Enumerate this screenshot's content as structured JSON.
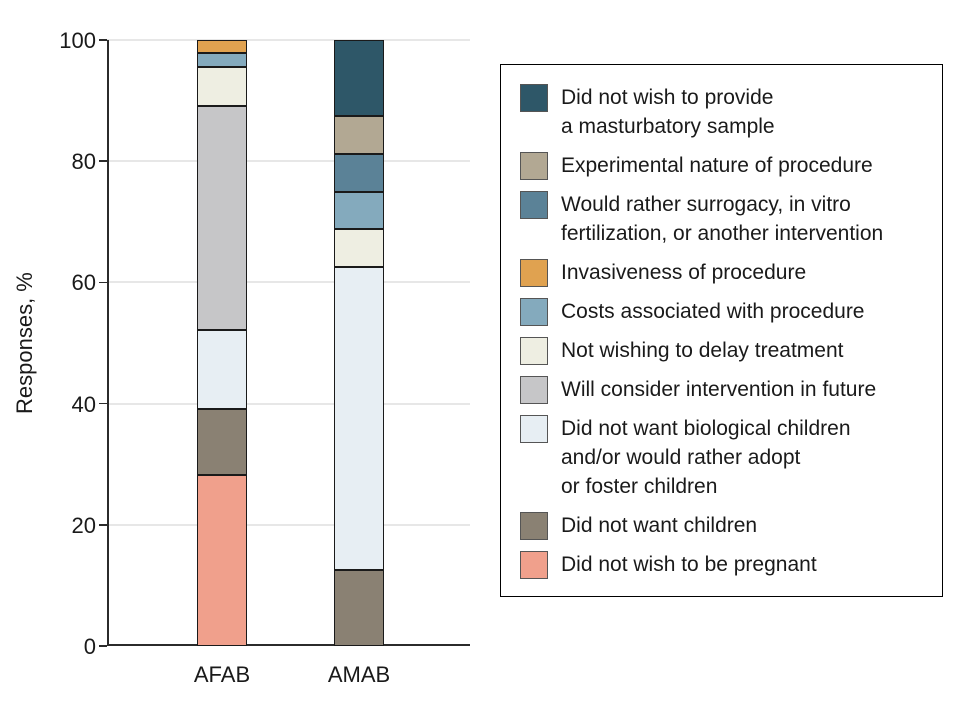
{
  "colors": {
    "background": "#ffffff",
    "axis": "#2b2b2b",
    "gridline": "#e7e7e7",
    "segment_border": "#1a1a1a",
    "text": "#1a1a1a",
    "legend_border": "#000000"
  },
  "chart_data": {
    "type": "bar",
    "stacked": true,
    "title": "",
    "xlabel": "",
    "ylabel": "Responses, %",
    "categories": [
      "AFAB",
      "AMAB"
    ],
    "ylim": [
      0,
      100
    ],
    "yticks": [
      0,
      20,
      40,
      60,
      80,
      100
    ],
    "grid": "horizontal",
    "legend_position": "right",
    "series": [
      {
        "name": "Did not wish to be pregnant",
        "color": "#f0a08c",
        "values": [
          28.3,
          0
        ]
      },
      {
        "name": "Did not want children",
        "color": "#8a8173",
        "values": [
          10.9,
          12.5
        ]
      },
      {
        "name": "Did not want biological children and/or would rather adopt or foster children",
        "color": "#e7eef3",
        "values": [
          13.0,
          50
        ]
      },
      {
        "name": "Will consider intervention in future",
        "color": "#c6c6c8",
        "values": [
          37.0,
          0
        ]
      },
      {
        "name": "Not wishing to delay treatment",
        "color": "#eeeee2",
        "values": [
          6.5,
          6.25
        ]
      },
      {
        "name": "Costs associated with procedure",
        "color": "#84aabd",
        "values": [
          2.2,
          6.25
        ]
      },
      {
        "name": "Invasiveness of procedure",
        "color": "#e0a250",
        "values": [
          2.2,
          0
        ]
      },
      {
        "name": "Would rather surrogacy, in vitro fertilization, or another intervention",
        "color": "#5b8297",
        "values": [
          0,
          6.25
        ]
      },
      {
        "name": "Experimental nature of procedure",
        "color": "#b2a893",
        "values": [
          0,
          6.25
        ]
      },
      {
        "name": "Did not wish to provide a masturbatory sample",
        "color": "#2e5768",
        "values": [
          0,
          12.5
        ]
      }
    ],
    "legend": [
      {
        "label": "Did not wish to provide\na masturbatory sample",
        "color": "#2e5768"
      },
      {
        "label": "Experimental nature of procedure",
        "color": "#b2a893"
      },
      {
        "label": "Would rather surrogacy, in vitro\nfertilization, or another intervention",
        "color": "#5b8297"
      },
      {
        "label": "Invasiveness of procedure",
        "color": "#e0a250"
      },
      {
        "label": "Costs associated with procedure",
        "color": "#84aabd"
      },
      {
        "label": "Not wishing to delay treatment",
        "color": "#eeeee2"
      },
      {
        "label": "Will consider intervention in future",
        "color": "#c6c6c8"
      },
      {
        "label": "Did not want biological children\nand/or would rather adopt\nor foster children",
        "color": "#e7eef3"
      },
      {
        "label": "Did not want children",
        "color": "#8a8173"
      },
      {
        "label": "Did not wish to be pregnant",
        "color": "#f0a08c"
      }
    ]
  }
}
